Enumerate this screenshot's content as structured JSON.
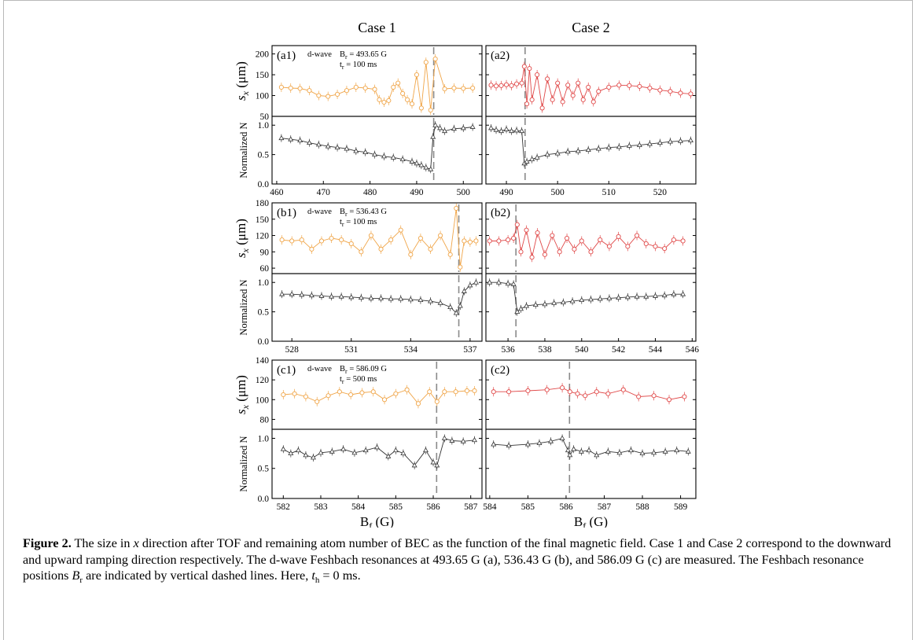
{
  "figure": {
    "column_titles": [
      "Case 1",
      "Case 2"
    ],
    "xlabel_left": "B",
    "xlabel_right": "B",
    "xlabel_sub": "f",
    "xlabel_unit": " (G)",
    "ylabel_sx_main": "s",
    "ylabel_sx_sub": "x",
    "ylabel_sx_unit": " (μm)",
    "ylabel_n": "Normalized N",
    "annotation_wave": "d-wave",
    "panels": [
      {
        "row": 0,
        "col": 0,
        "label": "(a1)",
        "Br": "B ",
        "Br_text": "= 493.65 G",
        "tr_text": "= 100 ms"
      },
      {
        "row": 0,
        "col": 1,
        "label": "(a2)"
      },
      {
        "row": 1,
        "col": 0,
        "label": "(b1)",
        "Br_text": "= 536.43 G",
        "tr_text": "= 100 ms"
      },
      {
        "row": 1,
        "col": 1,
        "label": "(b2)"
      },
      {
        "row": 2,
        "col": 0,
        "label": "(c1)",
        "Br_text": "= 586.09 G",
        "tr_text": "= 500 ms"
      },
      {
        "row": 2,
        "col": 1,
        "label": "(c2)"
      }
    ]
  },
  "chart_data": [
    {
      "type": "scatter",
      "panel": "a1-sx",
      "xlim": [
        459,
        504
      ],
      "ylim": [
        50,
        220
      ],
      "yticks": [
        50,
        100,
        150,
        200
      ],
      "resonance": 493.65,
      "color": "#f0a548",
      "x": [
        461,
        463,
        465,
        467,
        469,
        471,
        473,
        475,
        477,
        479,
        481,
        482,
        483,
        484,
        485,
        486,
        487,
        488,
        489,
        490,
        491,
        492,
        493,
        494,
        496,
        498,
        500,
        502
      ],
      "y": [
        120,
        118,
        117,
        112,
        100,
        98,
        103,
        112,
        120,
        118,
        115,
        90,
        84,
        88,
        120,
        130,
        105,
        90,
        80,
        150,
        70,
        180,
        65,
        188,
        116,
        118,
        117,
        118
      ]
    },
    {
      "type": "scatter",
      "panel": "a1-n",
      "xlim": [
        459,
        504
      ],
      "ylim": [
        0,
        1.15
      ],
      "yticks": [
        0.0,
        0.5,
        1.0
      ],
      "xticks": [
        460,
        470,
        480,
        490,
        500
      ],
      "resonance": 493.65,
      "color": "#333333",
      "x": [
        461,
        463,
        465,
        467,
        469,
        471,
        473,
        475,
        477,
        479,
        481,
        483,
        485,
        487,
        489,
        490,
        491,
        492,
        493,
        493.5,
        494,
        495,
        496,
        498,
        500,
        502
      ],
      "y": [
        0.78,
        0.76,
        0.74,
        0.7,
        0.67,
        0.64,
        0.62,
        0.6,
        0.56,
        0.54,
        0.5,
        0.47,
        0.45,
        0.42,
        0.38,
        0.35,
        0.32,
        0.28,
        0.25,
        0.8,
        1.0,
        0.95,
        0.9,
        0.94,
        0.95,
        0.97
      ]
    },
    {
      "type": "scatter",
      "panel": "a2-sx",
      "xlim": [
        486,
        527
      ],
      "ylim": [
        50,
        220
      ],
      "yticks": [
        50,
        100,
        150,
        200
      ],
      "resonance": 493.65,
      "color": "#e04848",
      "x": [
        487,
        488,
        489,
        490,
        491,
        492,
        493,
        493.5,
        494,
        494.5,
        495,
        496,
        497,
        498,
        499,
        500,
        501,
        502,
        503,
        504,
        505,
        506,
        507,
        508,
        510,
        512,
        514,
        516,
        518,
        520,
        522,
        524,
        526
      ],
      "y": [
        125,
        123,
        124,
        126,
        124,
        128,
        130,
        170,
        80,
        165,
        90,
        150,
        70,
        140,
        90,
        130,
        85,
        125,
        100,
        130,
        90,
        120,
        85,
        110,
        120,
        125,
        124,
        122,
        118,
        113,
        110,
        106,
        104
      ]
    },
    {
      "type": "scatter",
      "panel": "a2-n",
      "xlim": [
        486,
        527
      ],
      "ylim": [
        0,
        1.15
      ],
      "yticks": [
        0.0,
        0.5,
        1.0
      ],
      "xticks": [
        490,
        500,
        510,
        520
      ],
      "resonance": 493.65,
      "color": "#333333",
      "x": [
        487,
        488,
        489,
        490,
        491,
        492,
        493,
        493.5,
        494,
        495,
        496,
        498,
        500,
        502,
        504,
        506,
        508,
        510,
        512,
        514,
        516,
        518,
        520,
        522,
        524,
        526
      ],
      "y": [
        0.95,
        0.92,
        0.9,
        0.93,
        0.9,
        0.91,
        0.9,
        0.35,
        0.38,
        0.42,
        0.45,
        0.5,
        0.52,
        0.55,
        0.56,
        0.58,
        0.6,
        0.62,
        0.63,
        0.65,
        0.66,
        0.68,
        0.7,
        0.72,
        0.73,
        0.74
      ]
    },
    {
      "type": "scatter",
      "panel": "b1-sx",
      "xlim": [
        527,
        537.6
      ],
      "ylim": [
        50,
        180
      ],
      "yticks": [
        60,
        90,
        120,
        150,
        180
      ],
      "resonance": 536.43,
      "color": "#f0a548",
      "x": [
        527.5,
        528,
        528.5,
        529,
        529.5,
        530,
        530.5,
        531,
        531.5,
        532,
        532.5,
        533,
        533.5,
        534,
        534.5,
        535,
        535.5,
        536,
        536.3,
        536.5,
        536.7,
        537,
        537.3
      ],
      "y": [
        112,
        110,
        112,
        95,
        110,
        115,
        112,
        105,
        90,
        120,
        95,
        112,
        130,
        85,
        115,
        95,
        120,
        85,
        170,
        62,
        110,
        108,
        110
      ]
    },
    {
      "type": "scatter",
      "panel": "b1-n",
      "xlim": [
        527,
        537.6
      ],
      "ylim": [
        0,
        1.15
      ],
      "yticks": [
        0.0,
        0.5,
        1.0
      ],
      "xticks": [
        528,
        531,
        534,
        537
      ],
      "resonance": 536.43,
      "color": "#333333",
      "x": [
        527.5,
        528,
        528.5,
        529,
        529.5,
        530,
        530.5,
        531,
        531.5,
        532,
        532.5,
        533,
        533.5,
        534,
        534.5,
        535,
        535.5,
        536,
        536.3,
        536.5,
        536.7,
        537,
        537.3
      ],
      "y": [
        0.8,
        0.8,
        0.79,
        0.78,
        0.77,
        0.76,
        0.76,
        0.75,
        0.74,
        0.73,
        0.73,
        0.72,
        0.72,
        0.71,
        0.7,
        0.68,
        0.65,
        0.58,
        0.48,
        0.6,
        0.85,
        0.95,
        1.0
      ]
    },
    {
      "type": "scatter",
      "panel": "b2-sx",
      "xlim": [
        534.8,
        546.2
      ],
      "ylim": [
        50,
        180
      ],
      "yticks": [
        60,
        90,
        120,
        150,
        180
      ],
      "resonance": 536.43,
      "color": "#e04848",
      "x": [
        535,
        535.5,
        536,
        536.3,
        536.5,
        536.7,
        537,
        537.3,
        537.6,
        538,
        538.4,
        538.8,
        539.2,
        539.6,
        540,
        540.5,
        541,
        541.5,
        542,
        542.5,
        543,
        543.5,
        544,
        544.5,
        545,
        545.5
      ],
      "y": [
        110,
        110,
        112,
        115,
        140,
        90,
        130,
        80,
        125,
        85,
        120,
        90,
        115,
        95,
        110,
        90,
        112,
        100,
        118,
        100,
        120,
        105,
        100,
        96,
        112,
        110
      ]
    },
    {
      "type": "scatter",
      "panel": "b2-n",
      "xlim": [
        534.8,
        546.2
      ],
      "ylim": [
        0,
        1.15
      ],
      "yticks": [
        0.0,
        0.5,
        1.0
      ],
      "xticks": [
        536,
        538,
        540,
        542,
        544,
        546
      ],
      "resonance": 536.43,
      "color": "#333333",
      "x": [
        535,
        535.5,
        536,
        536.3,
        536.5,
        536.7,
        537,
        537.5,
        538,
        538.5,
        539,
        539.5,
        540,
        540.5,
        541,
        541.5,
        542,
        542.5,
        543,
        543.5,
        544,
        544.5,
        545,
        545.5
      ],
      "y": [
        1.0,
        1.0,
        0.98,
        0.97,
        0.5,
        0.55,
        0.6,
        0.62,
        0.63,
        0.65,
        0.66,
        0.68,
        0.7,
        0.71,
        0.72,
        0.73,
        0.74,
        0.75,
        0.76,
        0.76,
        0.77,
        0.78,
        0.8,
        0.8
      ]
    },
    {
      "type": "scatter",
      "panel": "c1-sx",
      "xlim": [
        581.7,
        587.3
      ],
      "ylim": [
        70,
        140
      ],
      "yticks": [
        80,
        100,
        120,
        140
      ],
      "resonance": 586.09,
      "color": "#f0a548",
      "x": [
        582,
        582.3,
        582.6,
        582.9,
        583.2,
        583.5,
        583.8,
        584.1,
        584.4,
        584.7,
        585,
        585.3,
        585.6,
        585.9,
        586.1,
        586.3,
        586.6,
        586.9,
        587.1
      ],
      "y": [
        105,
        106,
        103,
        98,
        104,
        108,
        105,
        107,
        108,
        100,
        106,
        110,
        96,
        108,
        98,
        108,
        108,
        109,
        109
      ]
    },
    {
      "type": "scatter",
      "panel": "c1-n",
      "xlim": [
        581.7,
        587.3
      ],
      "ylim": [
        0,
        1.15
      ],
      "yticks": [
        0.0,
        0.5,
        1.0
      ],
      "xticks": [
        582,
        583,
        584,
        585,
        586,
        587
      ],
      "resonance": 586.09,
      "color": "#333333",
      "x": [
        582,
        582.2,
        582.4,
        582.6,
        582.8,
        583,
        583.3,
        583.6,
        583.9,
        584.2,
        584.5,
        584.8,
        585,
        585.2,
        585.5,
        585.8,
        586,
        586.1,
        586.3,
        586.5,
        586.8,
        587.1
      ],
      "y": [
        0.82,
        0.75,
        0.8,
        0.72,
        0.68,
        0.76,
        0.78,
        0.82,
        0.76,
        0.8,
        0.85,
        0.7,
        0.8,
        0.75,
        0.55,
        0.8,
        0.6,
        0.55,
        1.0,
        0.96,
        0.95,
        0.97
      ]
    },
    {
      "type": "scatter",
      "panel": "c2-sx",
      "xlim": [
        583.9,
        589.4
      ],
      "ylim": [
        70,
        140
      ],
      "yticks": [
        80,
        100,
        120,
        140
      ],
      "resonance": 586.09,
      "color": "#e04848",
      "x": [
        584.1,
        584.5,
        585,
        585.5,
        585.9,
        586.1,
        586.3,
        586.5,
        586.8,
        587.1,
        587.5,
        587.9,
        588.3,
        588.7,
        589.1
      ],
      "y": [
        108,
        108,
        109,
        110,
        112,
        108,
        106,
        104,
        108,
        106,
        110,
        103,
        104,
        100,
        103
      ]
    },
    {
      "type": "scatter",
      "panel": "c2-n",
      "xlim": [
        583.9,
        589.4
      ],
      "ylim": [
        0,
        1.15
      ],
      "yticks": [
        0.0,
        0.5,
        1.0
      ],
      "xticks": [
        584,
        585,
        586,
        587,
        588,
        589
      ],
      "resonance": 586.09,
      "color": "#333333",
      "x": [
        584.1,
        584.5,
        585,
        585.3,
        585.6,
        585.9,
        586.05,
        586.1,
        586.2,
        586.4,
        586.6,
        586.8,
        587.1,
        587.4,
        587.7,
        588,
        588.3,
        588.6,
        588.9,
        589.2
      ],
      "y": [
        0.9,
        0.88,
        0.9,
        0.92,
        0.95,
        1.0,
        0.8,
        0.72,
        0.82,
        0.78,
        0.8,
        0.72,
        0.78,
        0.76,
        0.8,
        0.75,
        0.76,
        0.78,
        0.8,
        0.78
      ]
    }
  ],
  "caption": {
    "label": "Figure 2.",
    "seg1": " The size in ",
    "x_var": "x",
    "seg2": " direction after TOF and remaining atom number of BEC as the function of the final magnetic field. Case 1 and Case 2 correspond to the downward and upward ramping direction respectively. The d-wave Feshbach resonances at 493.65 G (a), 536.43 G (b), and 586.09 G (c) are measured. The Feshbach resonance positions ",
    "br_var": "B",
    "br_sub": "r",
    "seg3": " are indicated by vertical dashed lines. Here, ",
    "th_var": "t",
    "th_sub": "h",
    "seg4": " = 0 ms."
  }
}
